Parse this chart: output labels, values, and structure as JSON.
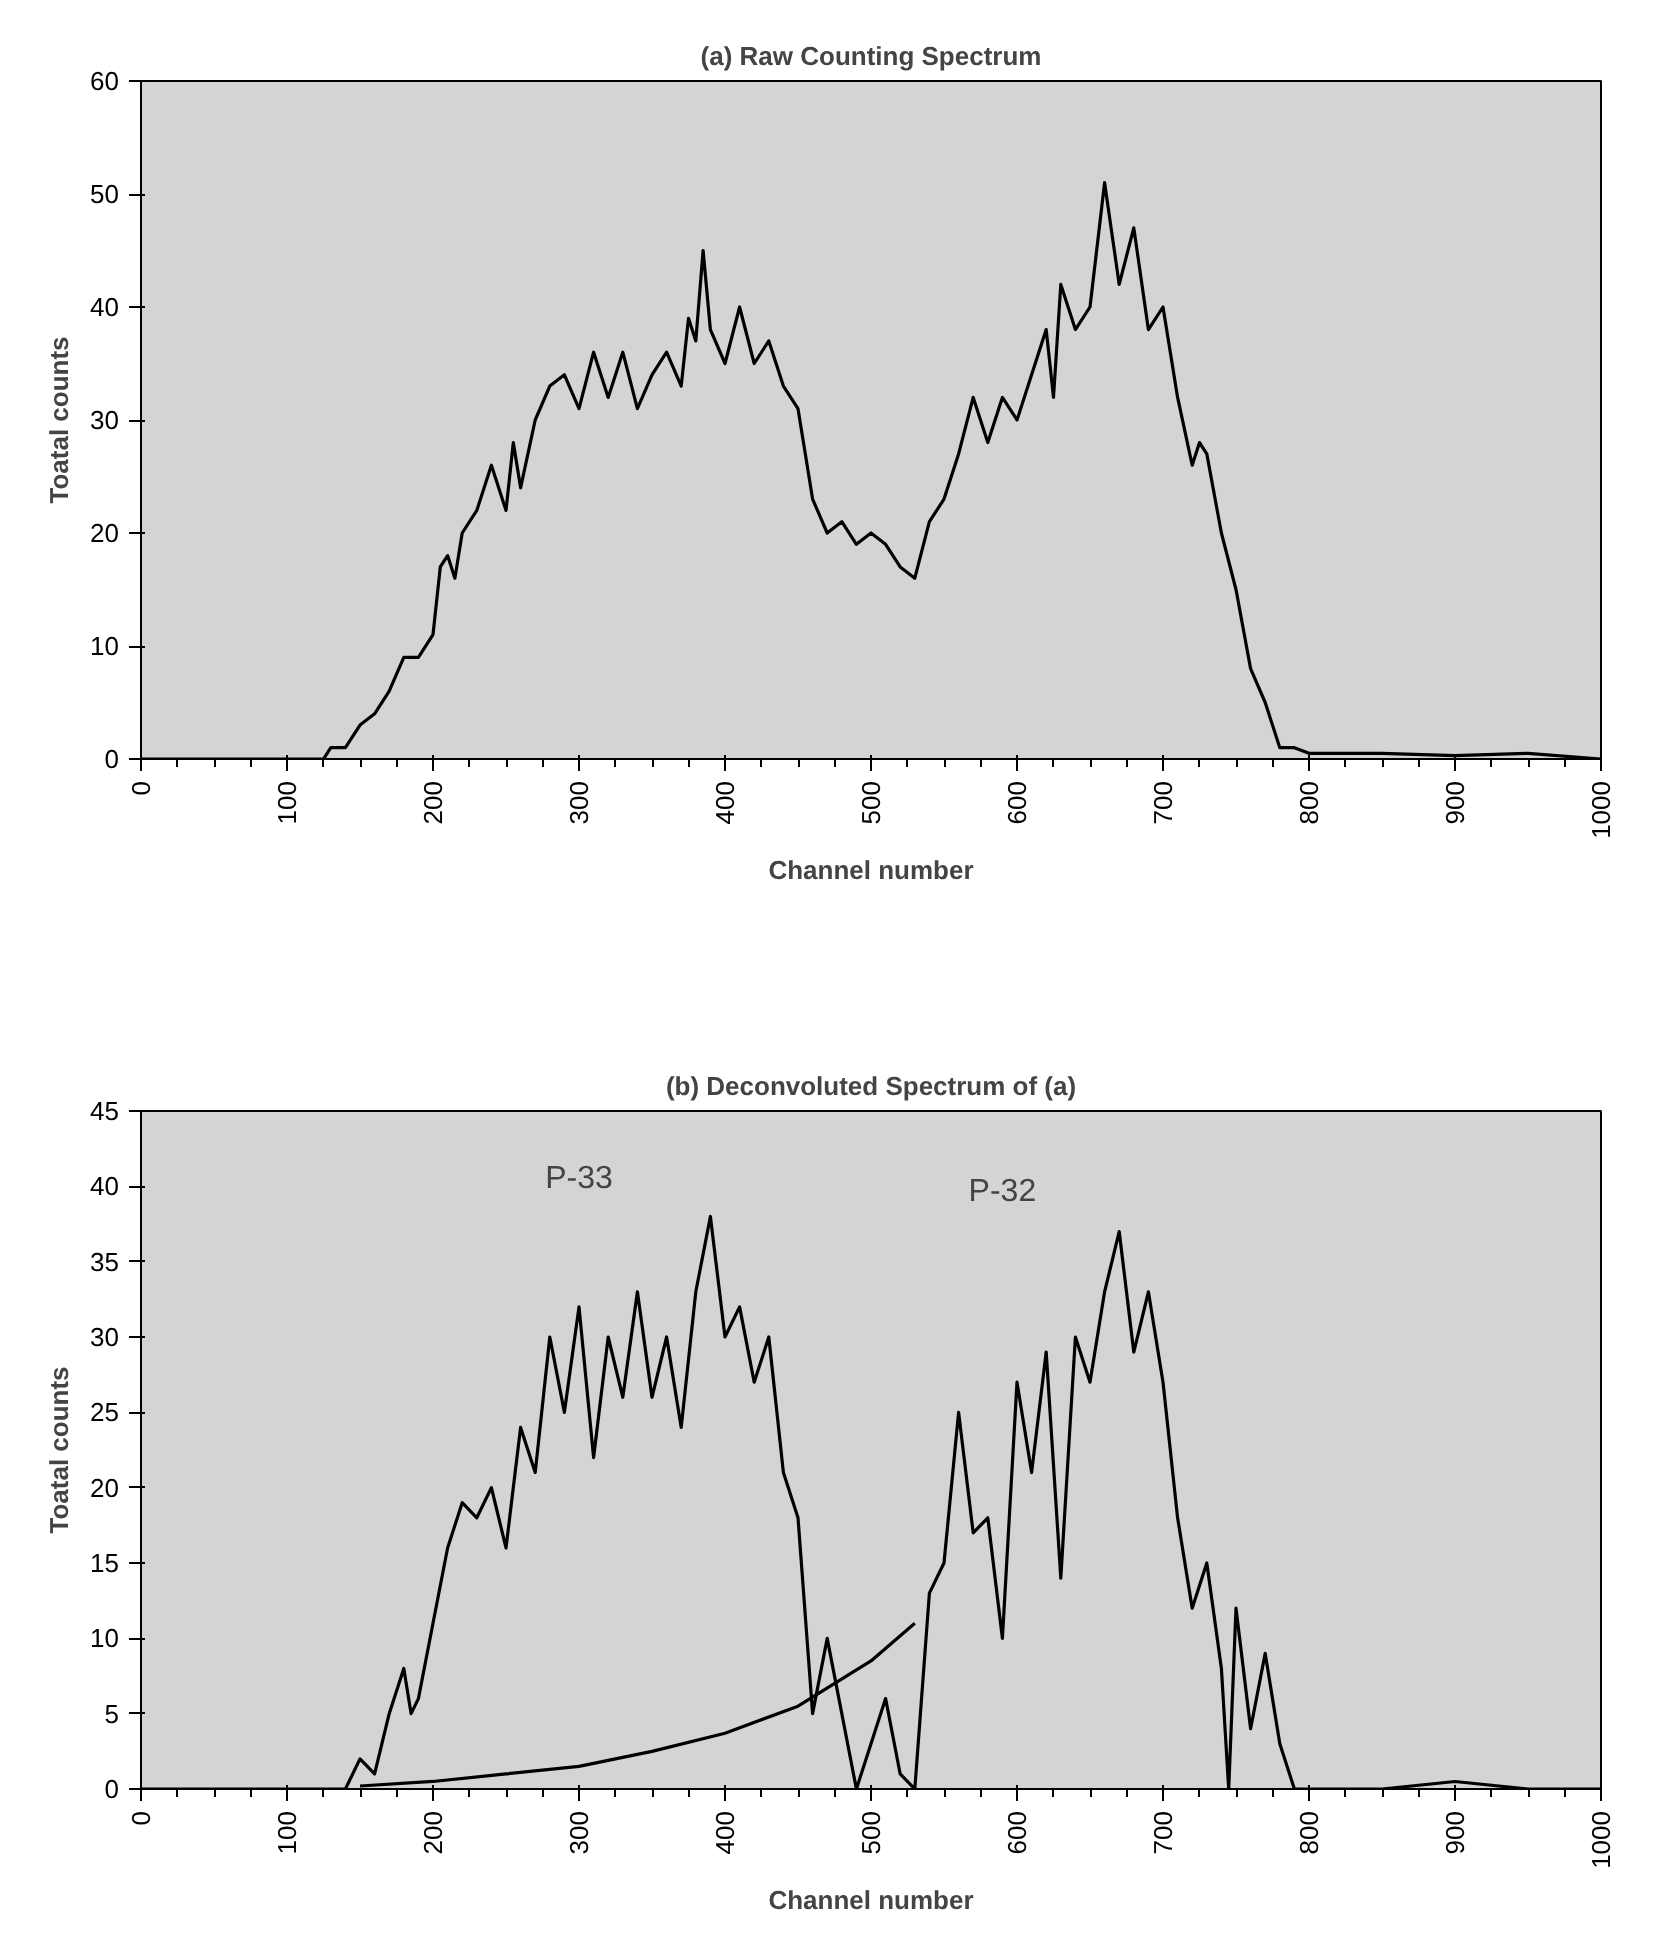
{
  "chart_data": [
    {
      "type": "line",
      "title": "(a) Raw Counting Spectrum",
      "xlabel": "Channel number",
      "ylabel": "Toatal counts",
      "xlim": [
        0,
        1000
      ],
      "ylim": [
        0,
        60
      ],
      "xticks": [
        0,
        100,
        200,
        300,
        400,
        500,
        600,
        700,
        800,
        900,
        1000
      ],
      "yticks": [
        0,
        10,
        20,
        30,
        40,
        50,
        60
      ],
      "grid": false,
      "series": [
        {
          "color": "#000000",
          "x": [
            0,
            100,
            125,
            130,
            140,
            150,
            160,
            170,
            180,
            190,
            200,
            205,
            210,
            215,
            220,
            230,
            240,
            250,
            255,
            260,
            270,
            280,
            290,
            300,
            310,
            320,
            330,
            340,
            350,
            360,
            370,
            375,
            380,
            385,
            390,
            400,
            410,
            420,
            430,
            440,
            450,
            460,
            470,
            480,
            490,
            500,
            510,
            520,
            530,
            540,
            550,
            560,
            570,
            580,
            590,
            600,
            610,
            620,
            625,
            630,
            640,
            650,
            660,
            670,
            680,
            690,
            700,
            710,
            720,
            725,
            730,
            740,
            750,
            760,
            770,
            780,
            790,
            800,
            850,
            900,
            950,
            1000
          ],
          "values": [
            0,
            0,
            0,
            1,
            1,
            3,
            4,
            6,
            9,
            9,
            11,
            17,
            18,
            16,
            20,
            22,
            26,
            22,
            28,
            24,
            30,
            33,
            34,
            31,
            36,
            32,
            36,
            31,
            34,
            36,
            33,
            39,
            37,
            45,
            38,
            35,
            40,
            35,
            37,
            33,
            31,
            23,
            20,
            21,
            19,
            20,
            19,
            17,
            16,
            21,
            23,
            27,
            32,
            28,
            32,
            30,
            34,
            38,
            32,
            42,
            38,
            40,
            51,
            42,
            47,
            38,
            40,
            32,
            26,
            28,
            27,
            20,
            15,
            8,
            5,
            1,
            1,
            0.5,
            0.5,
            0.3,
            0.5,
            0
          ]
        }
      ]
    },
    {
      "type": "line",
      "title": "(b) Deconvoluted Spectrum of (a)",
      "xlabel": "Channel number",
      "ylabel": "Toatal counts",
      "xlim": [
        0,
        1000
      ],
      "ylim": [
        0,
        45
      ],
      "xticks": [
        0,
        100,
        200,
        300,
        400,
        500,
        600,
        700,
        800,
        900,
        1000
      ],
      "yticks": [
        0,
        5,
        10,
        15,
        20,
        25,
        30,
        35,
        40,
        45
      ],
      "grid": false,
      "annotations": [
        "P-33",
        "P-32"
      ],
      "series": [
        {
          "color": "#000000",
          "x": [
            0,
            140,
            150,
            160,
            170,
            180,
            185,
            190,
            200,
            210,
            220,
            230,
            240,
            250,
            260,
            270,
            280,
            290,
            300,
            310,
            320,
            330,
            340,
            350,
            360,
            370,
            380,
            390,
            400,
            410,
            420,
            430,
            440,
            450,
            460,
            470,
            480,
            490,
            500,
            510,
            520,
            530,
            540,
            550,
            560,
            570,
            580,
            590,
            600,
            610,
            620,
            630,
            640,
            650,
            660,
            670,
            680,
            690,
            700,
            710,
            720,
            730,
            740,
            745,
            750,
            760,
            770,
            780,
            790,
            800,
            820,
            850,
            900,
            950,
            1000
          ],
          "values": [
            0,
            0,
            2,
            1,
            5,
            8,
            5,
            6,
            11,
            16,
            19,
            18,
            20,
            16,
            24,
            21,
            30,
            25,
            32,
            22,
            30,
            26,
            33,
            26,
            30,
            24,
            33,
            38,
            30,
            32,
            27,
            30,
            21,
            18,
            5,
            10,
            5,
            0,
            3,
            6,
            1,
            0,
            13,
            15,
            25,
            17,
            18,
            10,
            27,
            21,
            29,
            14,
            30,
            27,
            33,
            37,
            29,
            33,
            27,
            18,
            12,
            15,
            8,
            0,
            12,
            4,
            9,
            3,
            0,
            0,
            0,
            0,
            0.5,
            0,
            0
          ]
        },
        {
          "color": "#000000",
          "x": [
            150,
            200,
            250,
            300,
            350,
            400,
            450,
            500,
            530
          ],
          "values": [
            0.2,
            0.5,
            1,
            1.5,
            2.5,
            3.7,
            5.5,
            8.5,
            11
          ]
        }
      ]
    }
  ]
}
